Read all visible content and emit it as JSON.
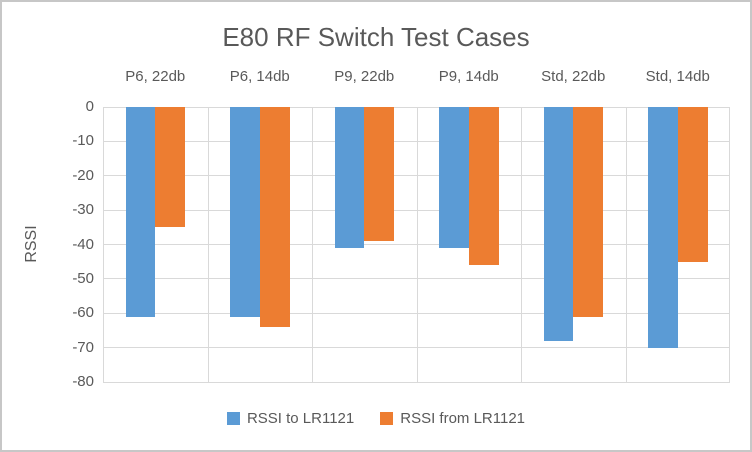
{
  "chart_data": {
    "type": "bar",
    "orientation": "vertical-negative",
    "title": "E80 RF Switch Test Cases",
    "categories": [
      "P6, 22db",
      "P6, 14db",
      "P9, 22db",
      "P9, 14db",
      "Std, 22db",
      "Std, 14db"
    ],
    "series": [
      {
        "name": "RSSI to LR1121",
        "color": "#5b9bd5",
        "values": [
          -61,
          -61,
          -41,
          -41,
          -68,
          -70
        ]
      },
      {
        "name": "RSSI from LR1121",
        "color": "#ed7d31",
        "values": [
          -35,
          -64,
          -39,
          -46,
          -61,
          -45
        ]
      }
    ],
    "xlabel": "",
    "ylabel": "RSSI",
    "ylim": [
      -80,
      0
    ],
    "ytick_step": 10,
    "yticks": [
      "0",
      "-10",
      "-20",
      "-30",
      "-40",
      "-50",
      "-60",
      "-70",
      "-80"
    ],
    "grid": true,
    "gridline_color": "#d9d9d9",
    "text_color": "#595959",
    "legend_position": "bottom"
  }
}
